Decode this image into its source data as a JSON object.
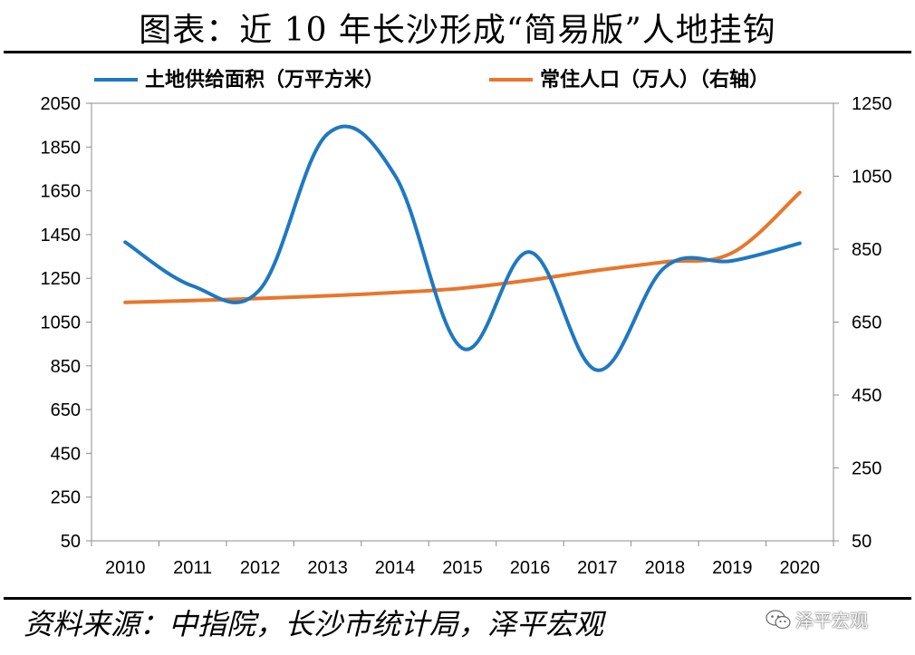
{
  "title": "图表：近 10 年长沙形成“简易版”人地挂钩",
  "source": "资料来源：中指院，长沙市统计局，泽平宏观",
  "watermark": "泽平宏观",
  "chart_data": {
    "type": "line",
    "categories": [
      "2010",
      "2011",
      "2012",
      "2013",
      "2014",
      "2015",
      "2016",
      "2017",
      "2018",
      "2019",
      "2020"
    ],
    "series": [
      {
        "name": "土地供给面积（万平方米）",
        "axis": "left",
        "color": "#1F78C1",
        "values": [
          1415,
          1215,
          1200,
          1910,
          1720,
          930,
          1370,
          830,
          1300,
          1330,
          1410
        ]
      },
      {
        "name": "常住人口（万人）（右轴）",
        "axis": "right",
        "color": "#E8762C",
        "values": [
          704,
          709,
          715,
          722,
          731,
          743,
          765,
          792,
          815,
          840,
          1005
        ]
      }
    ],
    "left_axis": {
      "ylim": [
        50,
        2050
      ],
      "ticks": [
        "2050",
        "1850",
        "1650",
        "1450",
        "1250",
        "1050",
        "850",
        "650",
        "450",
        "250",
        "50"
      ]
    },
    "right_axis": {
      "ylim": [
        50,
        1250
      ],
      "ticks": [
        "1250",
        "1050",
        "850",
        "650",
        "450",
        "250",
        "50"
      ]
    },
    "legend_position": "top",
    "grid": false
  }
}
